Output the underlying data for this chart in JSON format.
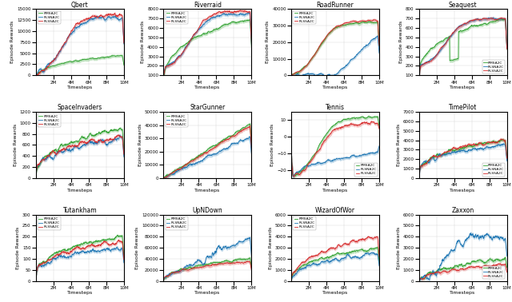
{
  "games": [
    "Qbert",
    "Riverraid",
    "RoadRunner",
    "Seaquest",
    "SpaceInvaders",
    "StarGunner",
    "Tennis",
    "TimePilot",
    "Tutankham",
    "UpNDown",
    "WizardOfWor",
    "Zaxxon"
  ],
  "legend_labels": [
    "RMSA2C",
    "RLSNA2C",
    "RLSSA2C"
  ],
  "colors": [
    "#2ca02c",
    "#1f77b4",
    "#d62728"
  ],
  "xlabel": "Timesteps",
  "ylabel": "Episode Rewards",
  "xticks": [
    2000000,
    4000000,
    6000000,
    8000000,
    10000000
  ],
  "xtick_labels": [
    "2M",
    "4M",
    "6M",
    "8M",
    "10M"
  ],
  "ylims": {
    "Qbert": [
      0,
      15000
    ],
    "Riverraid": [
      1000,
      8000
    ],
    "RoadRunner": [
      0,
      40000
    ],
    "Seaquest": [
      100,
      800
    ],
    "SpaceInvaders": [
      0,
      1200
    ],
    "StarGunner": [
      0,
      50000
    ],
    "Tennis": [
      -25,
      15
    ],
    "TimePilot": [
      0,
      7000
    ],
    "Tutankham": [
      0,
      300
    ],
    "UpNDown": [
      0,
      120000
    ],
    "WizardOfWor": [
      0,
      6000
    ],
    "Zaxxon": [
      0,
      6000
    ]
  },
  "seed": 42,
  "n_steps": 500,
  "total_steps": 10000000
}
